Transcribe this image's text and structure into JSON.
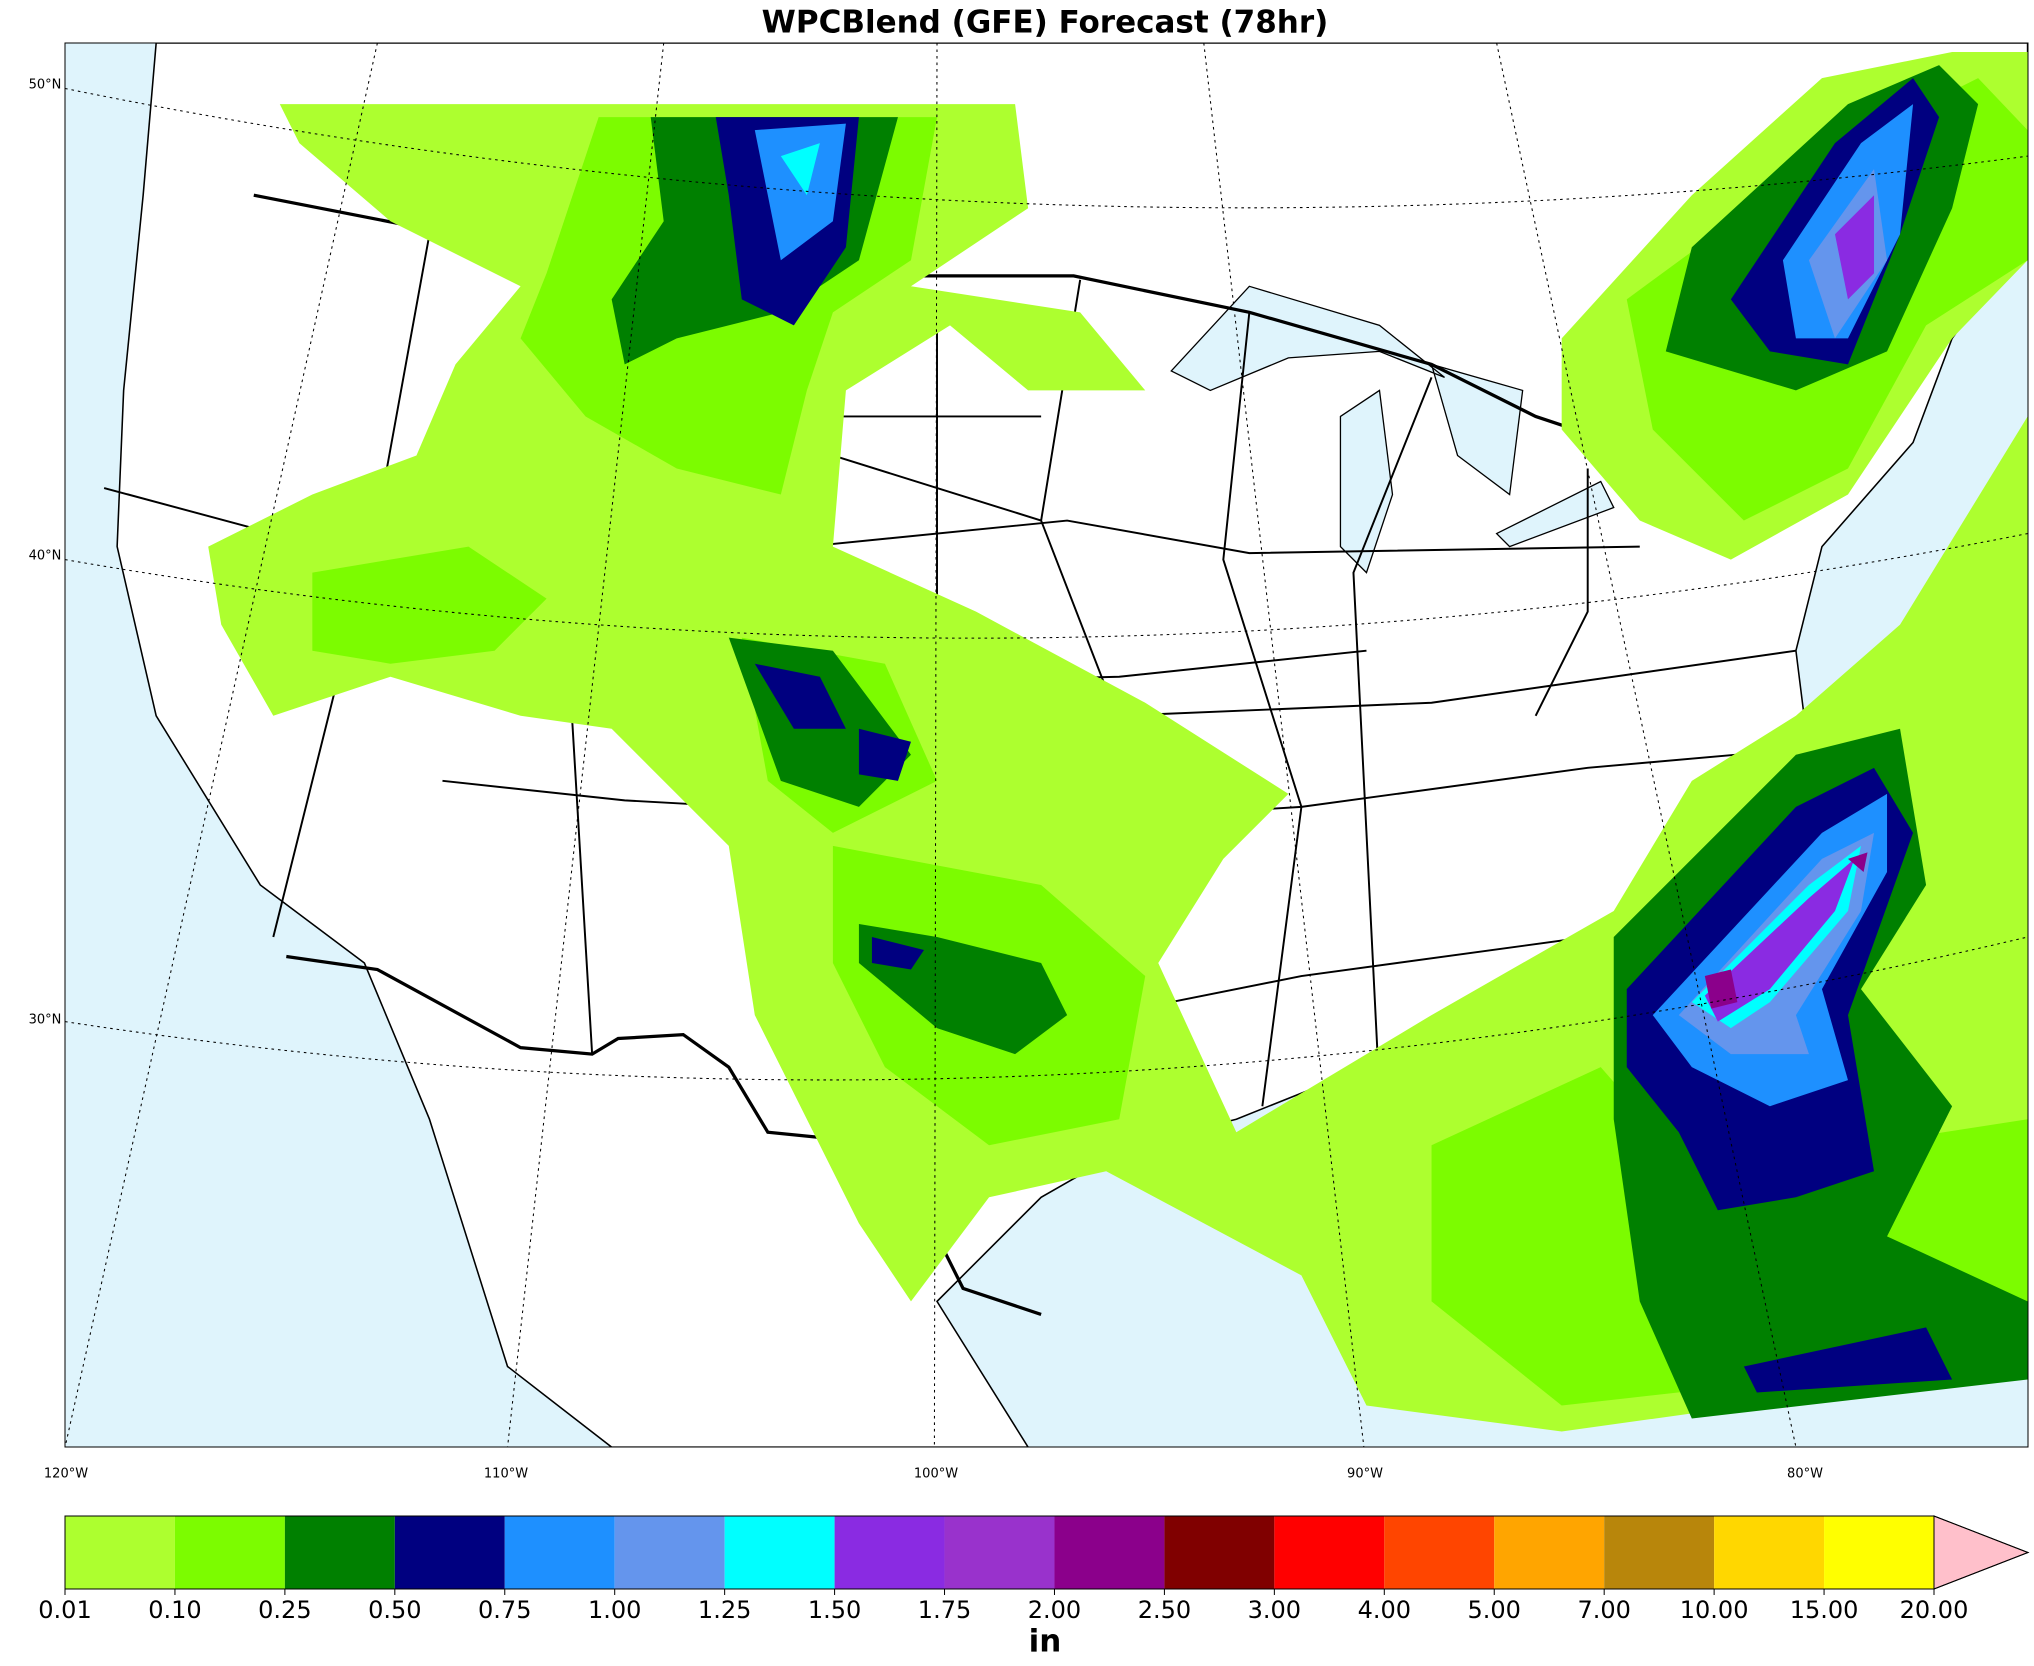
{
  "title": "WPCBlend (GFE) Forecast (78hr)",
  "map": {
    "lat_labels": [
      "50°N",
      "40°N",
      "30°N"
    ],
    "lon_labels": [
      "120°W",
      "110°W",
      "100°W",
      "90°W",
      "80°W"
    ]
  },
  "colorbar": {
    "ticks": [
      0.01,
      {
        "value": 0.1,
        "label": "0.10"
      },
      {
        "value": 0.25,
        "label": "0.25"
      },
      {
        "value": 0.5,
        "label": "0.50"
      },
      {
        "value": 0.75,
        "label": "0.75"
      },
      {
        "value": 1,
        "label": "1.00"
      },
      {
        "value": 1.25,
        "label": "1.25"
      },
      {
        "value": 1.5,
        "label": "1.50"
      },
      {
        "value": 1.75,
        "label": "1.75"
      },
      {
        "value": 2,
        "label": "2.00"
      },
      {
        "value": 2.5,
        "label": "2.50"
      },
      {
        "value": 3,
        "label": "3.00"
      },
      {
        "value": 4,
        "label": "4.00"
      },
      {
        "value": 5,
        "label": "5.00"
      },
      {
        "value": 7,
        "label": "7.00"
      },
      {
        "value": 10,
        "label": "10.00"
      },
      {
        "value": 15,
        "label": "15.00"
      },
      {
        "value": 20,
        "label": "20.00"
      }
    ],
    "colors": [
      "#adff2f",
      "#7cfc00",
      "#008000",
      "#000080",
      "#1e90ff",
      "#6495ed",
      "#00ffff",
      "#8a2be2",
      "#9932cc",
      "#8b008b",
      "#800000",
      "#ff0000",
      "#ff4500",
      "#ffa500",
      "#b8860b",
      "#ffd700",
      "#ffff00"
    ],
    "extend_color": "#ffc0cb",
    "unit": "in"
  }
}
